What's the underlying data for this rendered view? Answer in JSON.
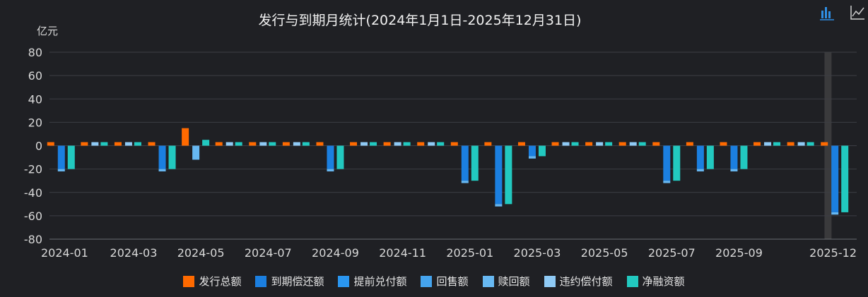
{
  "title": "发行与到期月统计(2024年1月1日-2025年12月31日)",
  "y_unit": "亿元",
  "colors": {
    "background": "#1f2024",
    "grid": "#3c3e44",
    "axis_text": "#d8d8d8",
    "highlight_band": "#3a3a3c",
    "toolbar_active": "#2f8ee3",
    "toolbar_inactive": "#cfcfcf"
  },
  "toolbar": {
    "bar_icon": "bar-chart-icon",
    "line_icon": "line-chart-icon"
  },
  "chart_data": {
    "type": "bar",
    "categories": [
      "2024-01",
      "2024-02",
      "2024-03",
      "2024-04",
      "2024-05",
      "2024-06",
      "2024-07",
      "2024-08",
      "2024-09",
      "2024-10",
      "2024-11",
      "2024-12",
      "2025-01",
      "2025-02",
      "2025-03",
      "2025-04",
      "2025-05",
      "2025-06",
      "2025-07",
      "2025-08",
      "2025-09",
      "2025-10",
      "2025-11",
      "2025-12"
    ],
    "x_tick_labels": [
      "2024-01",
      "2024-03",
      "2024-05",
      "2024-07",
      "2024-09",
      "2024-11",
      "2025-01",
      "2025-03",
      "2025-05",
      "2025-07",
      "2025-09",
      "2025-12"
    ],
    "ylim": [
      -80,
      80
    ],
    "y_ticks": [
      80,
      60,
      40,
      20,
      0,
      -20,
      -40,
      -60,
      -80
    ],
    "grid": true,
    "legend_position": "bottom",
    "highlight_category": "2025-12",
    "series": [
      {
        "name": "发行总额",
        "color": "#ff6a00",
        "values": [
          0,
          0,
          0,
          0,
          15,
          0,
          0,
          0,
          0,
          0,
          0,
          0,
          0,
          0,
          0,
          0,
          0,
          0,
          0,
          0,
          0,
          0,
          0,
          0
        ]
      },
      {
        "name": "到期偿还额",
        "color": "#1b7fe0",
        "values": [
          -20,
          0,
          0,
          -20,
          0,
          0,
          0,
          0,
          -20,
          0,
          0,
          0,
          -30,
          -50,
          -9,
          0,
          0,
          0,
          -30,
          -20,
          -20,
          0,
          0,
          -57
        ]
      },
      {
        "name": "提前兑付额",
        "color": "#2a96f0",
        "values": [
          0,
          0,
          0,
          0,
          0,
          0,
          0,
          0,
          0,
          0,
          0,
          0,
          0,
          0,
          0,
          0,
          0,
          0,
          0,
          0,
          0,
          0,
          0,
          0
        ]
      },
      {
        "name": "回售额",
        "color": "#45a4ee",
        "values": [
          0,
          0,
          0,
          0,
          0,
          0,
          0,
          0,
          0,
          0,
          0,
          0,
          0,
          0,
          0,
          0,
          0,
          0,
          0,
          0,
          0,
          0,
          0,
          0
        ]
      },
      {
        "name": "赎回额",
        "color": "#67b8f2",
        "values": [
          -2,
          0,
          0,
          -2,
          -12,
          0,
          0,
          0,
          -2,
          0,
          0,
          0,
          -2,
          -2,
          -2,
          0,
          0,
          0,
          -2,
          -2,
          -2,
          0,
          0,
          -2
        ]
      },
      {
        "name": "违约偿付额",
        "color": "#8fcaf5",
        "values": [
          0,
          0,
          0,
          0,
          0,
          0,
          0,
          0,
          0,
          0,
          0,
          0,
          0,
          0,
          0,
          0,
          0,
          0,
          0,
          0,
          0,
          0,
          0,
          0
        ]
      },
      {
        "name": "净融资额",
        "color": "#22c9c0",
        "values": [
          -20,
          0,
          0,
          -20,
          5,
          0,
          0,
          0,
          -20,
          0,
          0,
          0,
          -30,
          -50,
          -9,
          0,
          0,
          0,
          -30,
          -20,
          -20,
          0,
          0,
          -57
        ]
      }
    ]
  }
}
